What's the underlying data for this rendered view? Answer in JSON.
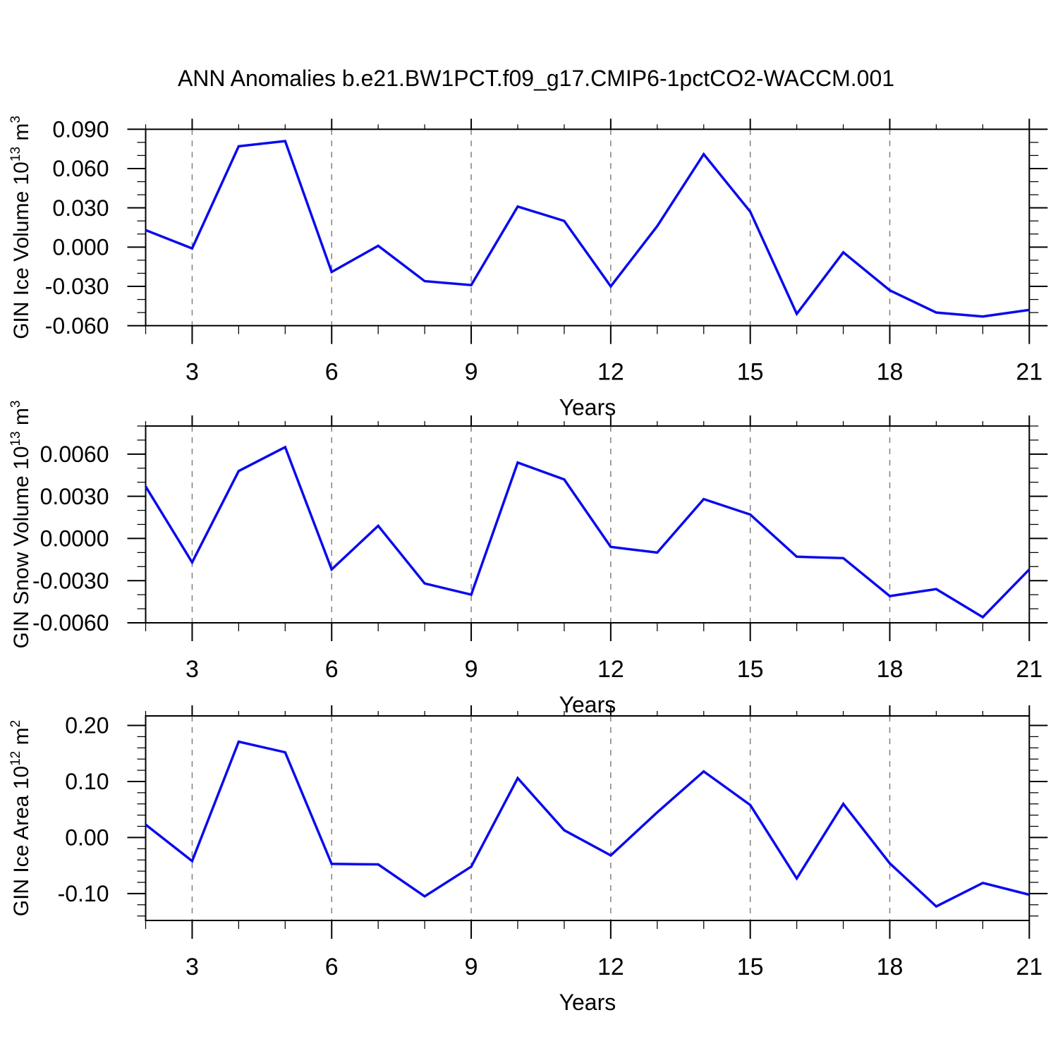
{
  "figure_title": "ANN Anomalies b.e21.BW1PCT.f09_g17.CMIP6-1pctCO2-WACCM.001",
  "colors": {
    "line": "#0a0aee",
    "grid": "#808080",
    "axis": "#000000",
    "text": "#000000",
    "background": "#ffffff"
  },
  "x_axis": {
    "label": "Years",
    "xlim": [
      2,
      21
    ],
    "major_ticks": [
      3,
      6,
      9,
      12,
      15,
      18,
      21
    ],
    "major_tick_labels": [
      "3",
      "6",
      "9",
      "12",
      "15",
      "18",
      "21"
    ],
    "minor_step": 1,
    "gridline_years": [
      3,
      6,
      9,
      12,
      15,
      18
    ]
  },
  "chart_data": [
    {
      "type": "line",
      "panel": "gin-ice-volume",
      "ylabel": "GIN Ice Volume 10¹³ m³",
      "ylabel_segments": [
        {
          "t": "GIN Ice Volume 10"
        },
        {
          "t": "13",
          "sup": true
        },
        {
          "t": " m"
        },
        {
          "t": "3",
          "sup": true
        }
      ],
      "xlabel": "Years",
      "ylim": [
        -0.06,
        0.09
      ],
      "yticks": {
        "values": [
          -0.06,
          -0.03,
          0.0,
          0.03,
          0.06,
          0.09
        ],
        "labels": [
          "-0.060",
          "-0.030",
          "0.000",
          "0.030",
          "0.060",
          "0.090"
        ]
      },
      "yminor_step": 0.01,
      "x": [
        2,
        3,
        4,
        5,
        6,
        7,
        8,
        9,
        10,
        11,
        12,
        13,
        14,
        15,
        16,
        17,
        18,
        19,
        20,
        21
      ],
      "values": [
        0.013,
        -0.001,
        0.077,
        0.081,
        -0.019,
        0.001,
        -0.026,
        -0.029,
        0.031,
        0.02,
        -0.03,
        0.016,
        0.071,
        0.027,
        -0.051,
        -0.004,
        -0.033,
        -0.05,
        -0.053,
        -0.048
      ]
    },
    {
      "type": "line",
      "panel": "gin-snow-volume",
      "ylabel": "GIN Snow Volume 10¹³ m³",
      "ylabel_segments": [
        {
          "t": "GIN Snow Volume 10"
        },
        {
          "t": "13",
          "sup": true
        },
        {
          "t": " m"
        },
        {
          "t": "3",
          "sup": true
        }
      ],
      "xlabel": "Years",
      "ylim": [
        -0.006,
        0.008
      ],
      "yticks": {
        "values": [
          -0.006,
          -0.003,
          0.0,
          0.003,
          0.006
        ],
        "labels": [
          "-0.0060",
          "-0.0030",
          "0.0000",
          "0.0030",
          "0.0060"
        ]
      },
      "yminor_step": 0.001,
      "x": [
        2,
        3,
        4,
        5,
        6,
        7,
        8,
        9,
        10,
        11,
        12,
        13,
        14,
        15,
        16,
        17,
        18,
        19,
        20,
        21
      ],
      "values": [
        0.0037,
        -0.0017,
        0.0048,
        0.0065,
        -0.0022,
        0.0009,
        -0.0032,
        -0.004,
        0.0054,
        0.0042,
        -0.0006,
        -0.001,
        0.0028,
        0.0017,
        -0.0013,
        -0.0014,
        -0.0041,
        -0.0036,
        -0.0056,
        -0.0022
      ]
    },
    {
      "type": "line",
      "panel": "gin-ice-area",
      "ylabel": "GIN Ice Area 10¹² m²",
      "ylabel_segments": [
        {
          "t": "GIN Ice Area 10"
        },
        {
          "t": "12",
          "sup": true
        },
        {
          "t": " m"
        },
        {
          "t": "2",
          "sup": true
        }
      ],
      "xlabel": "Years",
      "ylim": [
        -0.148,
        0.217
      ],
      "yticks": {
        "values": [
          -0.1,
          0.0,
          0.1,
          0.2
        ],
        "labels": [
          "-0.10",
          "0.00",
          "0.10",
          "0.20"
        ]
      },
      "yminor_step": 0.02,
      "x": [
        2,
        3,
        4,
        5,
        6,
        7,
        8,
        9,
        10,
        11,
        12,
        13,
        14,
        15,
        16,
        17,
        18,
        19,
        20,
        21
      ],
      "values": [
        0.023,
        -0.042,
        0.171,
        0.152,
        -0.047,
        -0.048,
        -0.105,
        -0.052,
        0.106,
        0.013,
        -0.032,
        0.045,
        0.118,
        0.058,
        -0.073,
        0.06,
        -0.046,
        -0.123,
        -0.081,
        -0.102
      ]
    }
  ]
}
